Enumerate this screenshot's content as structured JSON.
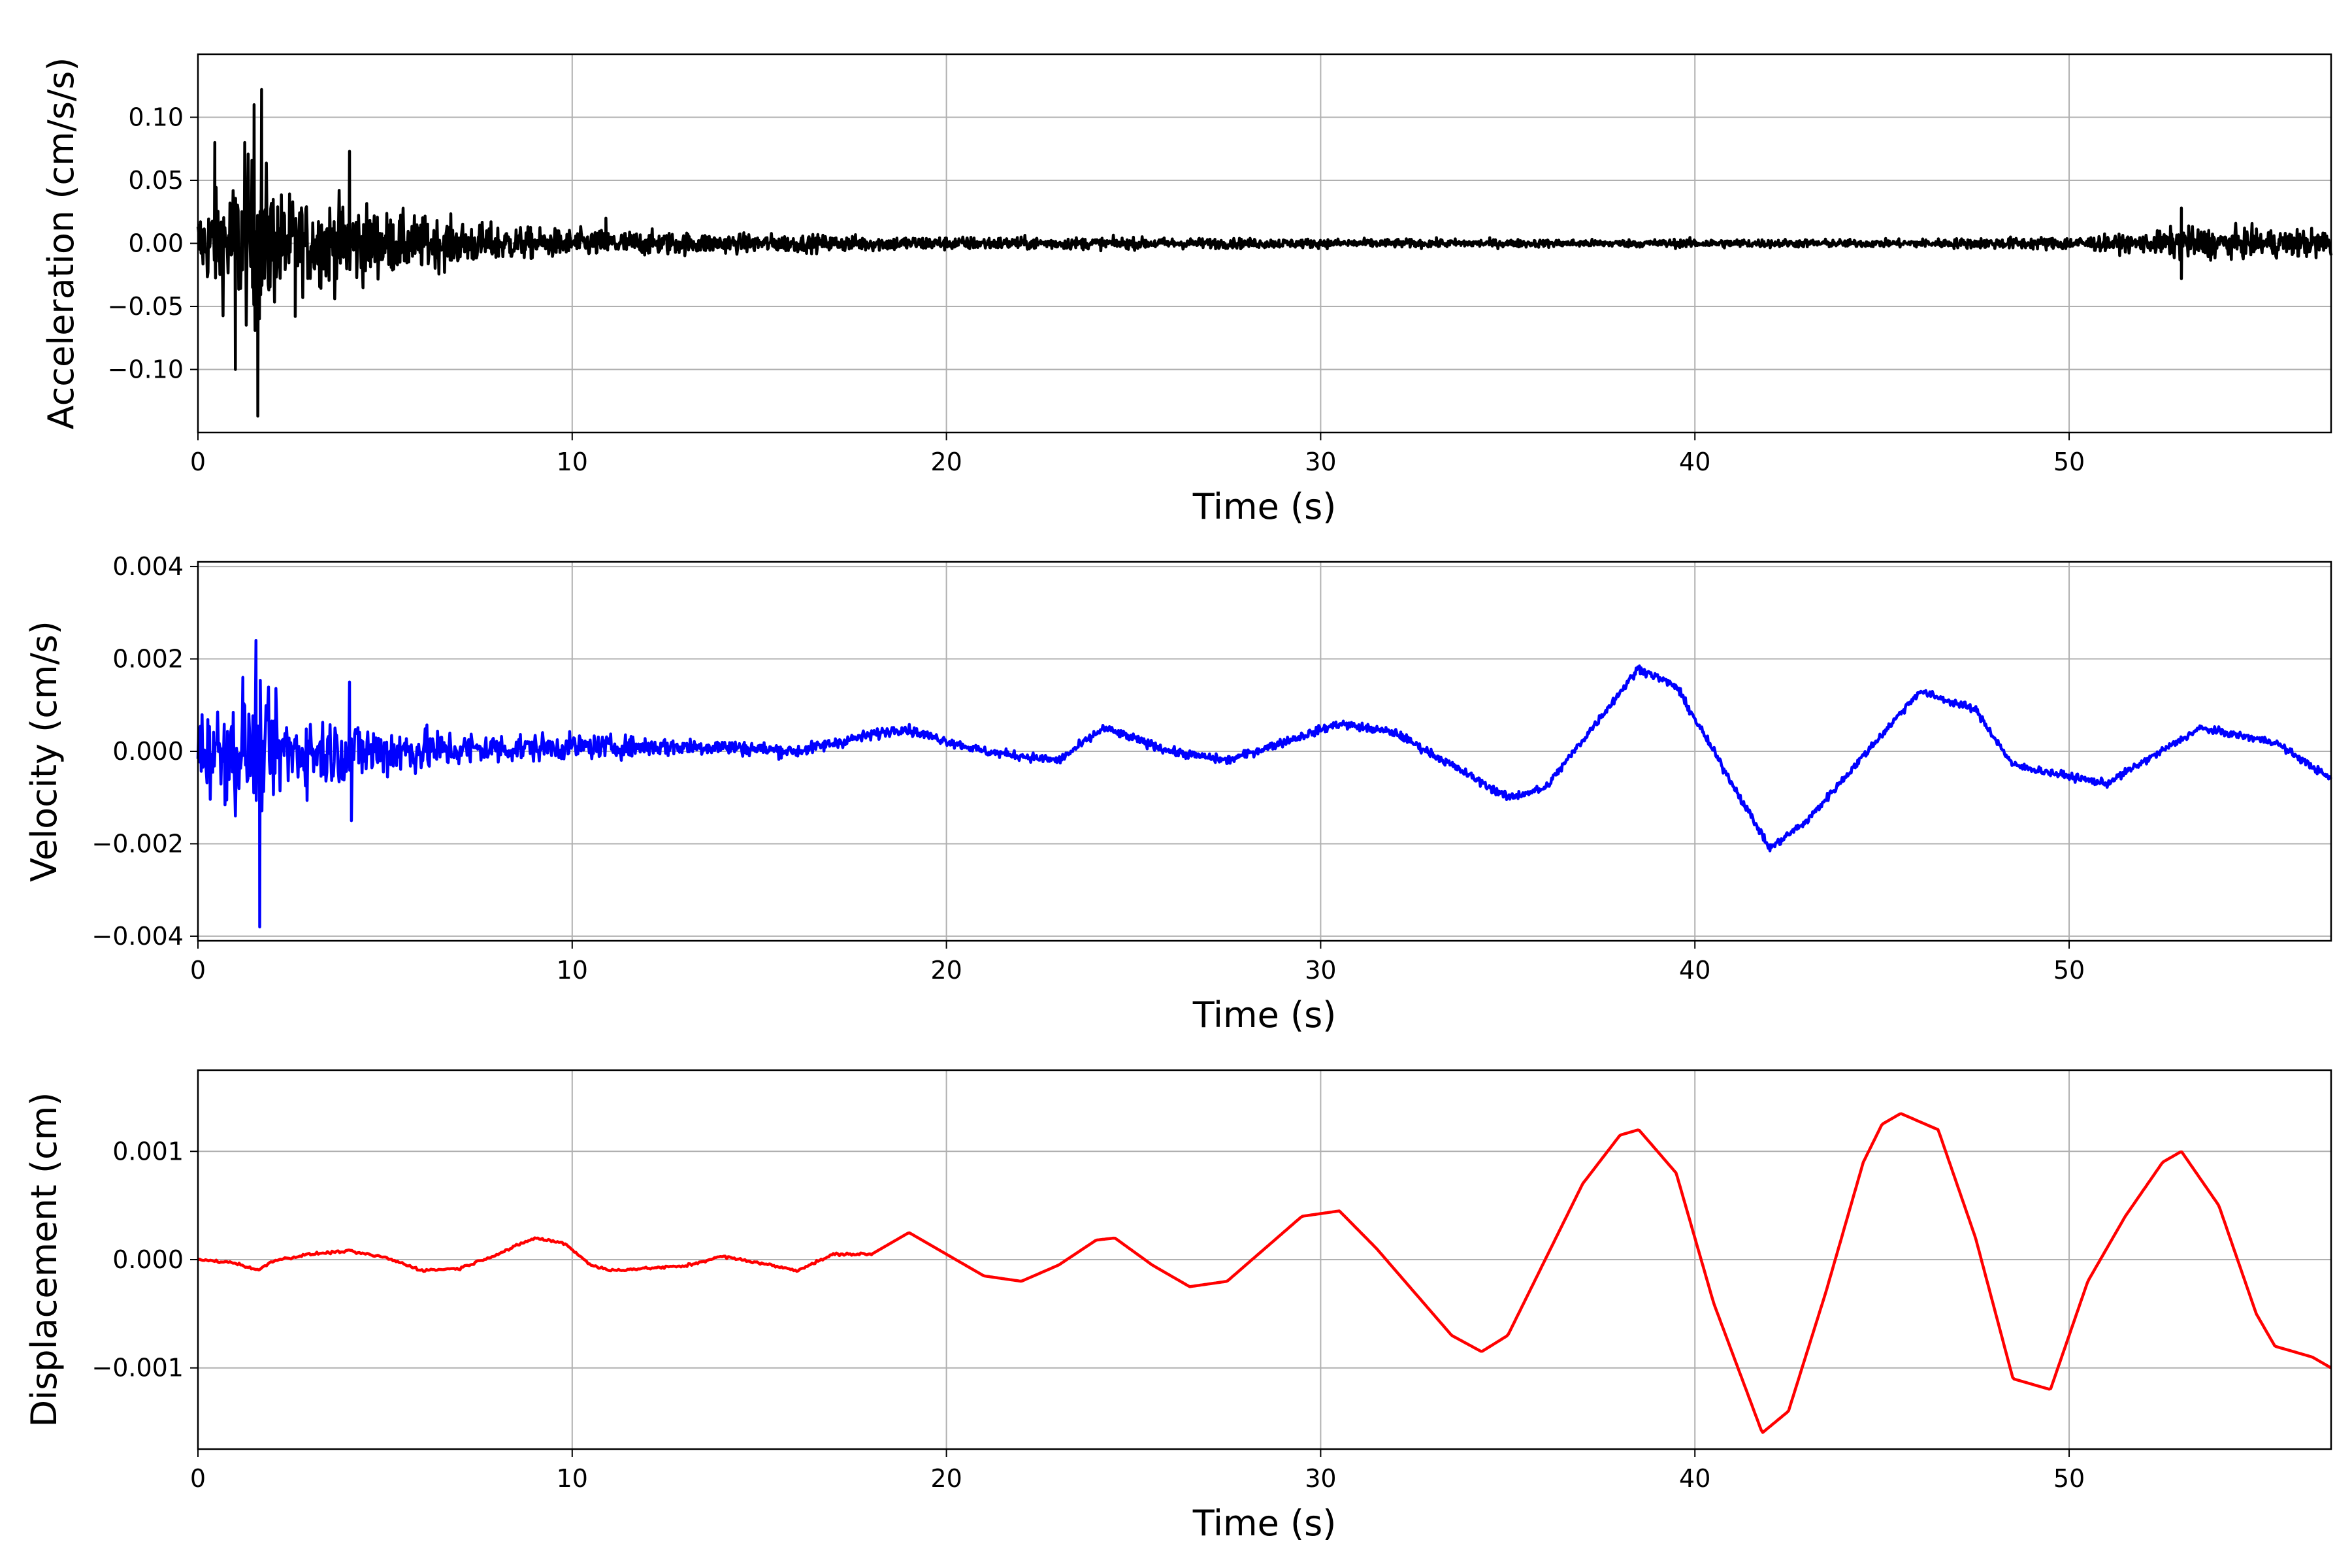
{
  "chart_data": [
    {
      "type": "line",
      "xlabel": "Time (s)",
      "ylabel": "Acceleration (cm/s/s)",
      "xlim": [
        0,
        57
      ],
      "ylim": [
        -0.15,
        0.15
      ],
      "xticks": [
        0,
        10,
        20,
        30,
        40,
        50
      ],
      "xtick_labels": [
        "0",
        "10",
        "20",
        "30",
        "40",
        "50"
      ],
      "yticks": [
        0.1,
        0.05,
        0.0,
        -0.05,
        -0.1
      ],
      "ytick_labels": [
        "0.10",
        "0.05",
        "0.00",
        "−0.05",
        "−0.10"
      ],
      "grid": true,
      "color": "#000000",
      "envelope": [
        [
          0,
          0.045
        ],
        [
          1,
          0.09
        ],
        [
          1.6,
          0.12
        ],
        [
          2.2,
          0.07
        ],
        [
          3,
          0.055
        ],
        [
          4,
          0.06
        ],
        [
          5,
          0.042
        ],
        [
          7,
          0.03
        ],
        [
          9,
          0.02
        ],
        [
          10.8,
          0.018
        ],
        [
          14,
          0.013
        ],
        [
          20,
          0.009
        ],
        [
          30,
          0.006
        ],
        [
          38,
          0.005
        ],
        [
          40,
          0.006
        ],
        [
          45,
          0.005
        ],
        [
          50,
          0.009
        ],
        [
          52,
          0.012
        ],
        [
          53,
          0.022
        ],
        [
          55,
          0.018
        ],
        [
          57,
          0.02
        ]
      ],
      "spikes": [
        [
          1.6,
          -0.137
        ],
        [
          1.7,
          0.122
        ],
        [
          1.5,
          0.11
        ],
        [
          1.25,
          0.08
        ],
        [
          1.0,
          -0.1
        ],
        [
          0.45,
          0.08
        ],
        [
          4.05,
          0.073
        ],
        [
          10.9,
          0.02
        ],
        [
          53.0,
          0.028
        ],
        [
          53.0,
          -0.028
        ],
        [
          2.6,
          -0.058
        ]
      ]
    },
    {
      "type": "line",
      "xlabel": "Time (s)",
      "ylabel": "Velocity (cm/s)",
      "xlim": [
        0,
        57
      ],
      "ylim": [
        -0.0041,
        0.0041
      ],
      "xticks": [
        0,
        10,
        20,
        30,
        40,
        50
      ],
      "xtick_labels": [
        "0",
        "10",
        "20",
        "30",
        "40",
        "50"
      ],
      "yticks": [
        0.004,
        0.002,
        0.0,
        -0.002,
        -0.004
      ],
      "ytick_labels": [
        "0.004",
        "0.002",
        "0.000",
        "−0.002",
        "−0.004"
      ],
      "grid": true,
      "color": "#0000ff",
      "trend": [
        [
          0,
          0
        ],
        [
          5,
          0
        ],
        [
          10,
          0.0001
        ],
        [
          14,
          0.0001
        ],
        [
          16,
          0
        ],
        [
          18.8,
          0.0005
        ],
        [
          21,
          0
        ],
        [
          23,
          -0.0002
        ],
        [
          24.2,
          0.0005
        ],
        [
          26,
          0
        ],
        [
          27.5,
          -0.0002
        ],
        [
          30.5,
          0.0006
        ],
        [
          32,
          0.0004
        ],
        [
          35,
          -0.001
        ],
        [
          36,
          -0.0008
        ],
        [
          38.5,
          0.0018
        ],
        [
          39.5,
          0.0014
        ],
        [
          42,
          -0.0021
        ],
        [
          43,
          -0.0015
        ],
        [
          46,
          0.0013
        ],
        [
          47.5,
          0.0009
        ],
        [
          48.5,
          -0.0003
        ],
        [
          51,
          -0.0007
        ],
        [
          53.5,
          0.0005
        ],
        [
          55.5,
          0.0002
        ],
        [
          57,
          -0.0006
        ]
      ],
      "noise": [
        [
          0,
          0.0009
        ],
        [
          1.6,
          0.0012
        ],
        [
          3,
          0.0008
        ],
        [
          5,
          0.0006
        ],
        [
          7,
          0.0004
        ],
        [
          9,
          0.0003
        ],
        [
          12,
          0.00022
        ],
        [
          16,
          0.00014
        ],
        [
          20,
          0.0001
        ],
        [
          57,
          8e-05
        ]
      ],
      "spikes": [
        [
          1.55,
          0.0024
        ],
        [
          1.65,
          -0.0038
        ],
        [
          1.2,
          0.0016
        ],
        [
          1.0,
          -0.0014
        ],
        [
          4.05,
          0.0015
        ],
        [
          4.1,
          -0.0015
        ]
      ]
    },
    {
      "type": "line",
      "xlabel": "Time (s)",
      "ylabel": "Displacement (cm)",
      "xlim": [
        0,
        57
      ],
      "ylim": [
        -0.00175,
        0.00175
      ],
      "xticks": [
        0,
        10,
        20,
        30,
        40,
        50
      ],
      "xtick_labels": [
        "0",
        "10",
        "20",
        "30",
        "40",
        "50"
      ],
      "yticks": [
        0.001,
        0.0,
        -0.001
      ],
      "ytick_labels": [
        "0.001",
        "0.000",
        "−0.001"
      ],
      "grid": true,
      "color": "#ff0000",
      "x": [
        0,
        1,
        1.6,
        2,
        3,
        4,
        5,
        6,
        7,
        8,
        9,
        9.8,
        10.5,
        11,
        12,
        13,
        14,
        15,
        16,
        17,
        18,
        19,
        20,
        21,
        22,
        23,
        24,
        24.5,
        25.5,
        26.5,
        27.5,
        28.5,
        29.5,
        30.5,
        31.5,
        32.5,
        33.5,
        34.3,
        35,
        36,
        37,
        38,
        38.5,
        39.5,
        40.5,
        41.8,
        42.5,
        43.5,
        44.5,
        45,
        45.5,
        46.5,
        47.5,
        48.5,
        49.5,
        50.5,
        51.5,
        52.5,
        53,
        54,
        55,
        55.5,
        56.5,
        57
      ],
      "y": [
        0,
        -3e-05,
        -0.0001,
        -1e-05,
        5e-05,
        8e-05,
        2e-05,
        -0.0001,
        -8e-05,
        5e-05,
        0.0002,
        0.00015,
        -5e-05,
        -0.0001,
        -8e-05,
        -6e-05,
        3e-05,
        -3e-05,
        -0.0001,
        5e-05,
        5e-05,
        0.00025,
        5e-05,
        -0.00015,
        -0.0002,
        -5e-05,
        0.00018,
        0.0002,
        -5e-05,
        -0.00025,
        -0.0002,
        0.0001,
        0.0004,
        0.00045,
        0.0001,
        -0.0003,
        -0.0007,
        -0.00085,
        -0.0007,
        0,
        0.0007,
        0.00115,
        0.0012,
        0.0008,
        -0.0004,
        -0.0016,
        -0.0014,
        -0.0003,
        0.0009,
        0.00125,
        0.00135,
        0.0012,
        0.0002,
        -0.0011,
        -0.0012,
        -0.0002,
        0.0004,
        0.0009,
        0.001,
        0.0005,
        -0.0005,
        -0.0008,
        -0.0009,
        -0.001
      ]
    }
  ]
}
